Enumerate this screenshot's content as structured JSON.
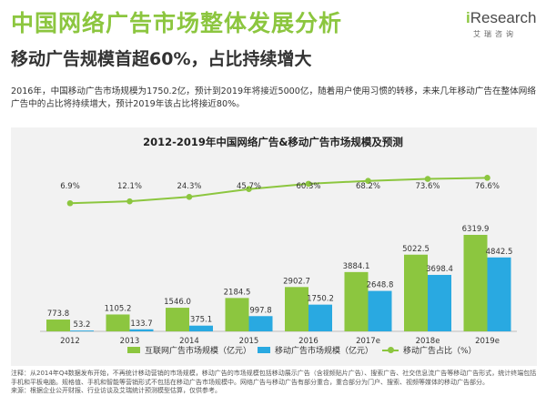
{
  "header": {
    "title": "中国网络广告市场整体发展分析",
    "subtitle": "移动广告规模首超60%，占比持续增大",
    "logo_text": "Research",
    "logo_initial": "i",
    "logo_subtext": "艾瑞咨询"
  },
  "summary": "2016年，中国移动广告市场规模为1750.2亿，预计到2019年将接近5000亿，随着用户使用习惯的转移，未来几年移动广告在整体网络广告中的占比将持续增大，预计2019年该占比将接近80%。",
  "notes": {
    "line1": "注释：从2014年Q4数据发布开始，不再统计移动营销的市场规模，移动广告的市场规模包括移动展示广告（含视频贴片广告）、搜索广告、社交信息流广告等移动广告形式，统计终端包括手机和平板电脑。规格值、手机和智能等营销形式不包括在移动广告市场规模中。网络广告与移动广告有部分重合，重合部分为门户、搜索、视频等媒体的移动广告部分。",
    "line2": "来源：根据企业公开财报、行业访谈及艾瑞统计预测模型估算，仅供参考。"
  },
  "colors": {
    "internet": "#8cc63f",
    "mobile": "#29a9e1",
    "share": "#8cc63f",
    "background": "#f2f2f2"
  },
  "chart_data": {
    "type": "bar",
    "title": "2012-2019年中国网络广告&移动广告市场规模及预测",
    "categories": [
      "2012",
      "2013",
      "2014",
      "2015",
      "2016",
      "2017e",
      "2018e",
      "2019e"
    ],
    "series": [
      {
        "name": "互联网广告市场规模（亿元）",
        "type": "bar",
        "values": [
          773.8,
          1105.2,
          1546.0,
          2184.5,
          2902.7,
          3884.1,
          5022.5,
          6319.9
        ],
        "labels": [
          "773.8",
          "1105.2",
          "1546.0",
          "2184.5",
          "2902.7",
          "3884.1",
          "5022.5",
          "6319.9"
        ]
      },
      {
        "name": "移动广告市场规模（亿元）",
        "type": "bar",
        "values": [
          53.2,
          133.7,
          375.1,
          997.8,
          1750.2,
          2648.8,
          3698.4,
          4842.5
        ],
        "labels": [
          "53.2",
          "133.7",
          "375.1",
          "997.8",
          "1750.2",
          "2648.8",
          "3698.4",
          "4842.5"
        ]
      },
      {
        "name": "移动广告占比（%）",
        "type": "line",
        "values": [
          6.9,
          12.1,
          24.3,
          45.7,
          60.3,
          68.2,
          73.6,
          76.6
        ],
        "labels": [
          "6.9%",
          "12.1%",
          "24.3%",
          "45.7%",
          "60.3%",
          "68.2%",
          "73.6%",
          "76.6%"
        ]
      }
    ],
    "ylim": [
      0,
      6500
    ],
    "share_range": [
      0,
      100
    ],
    "grid": false,
    "legend": "bottom"
  }
}
